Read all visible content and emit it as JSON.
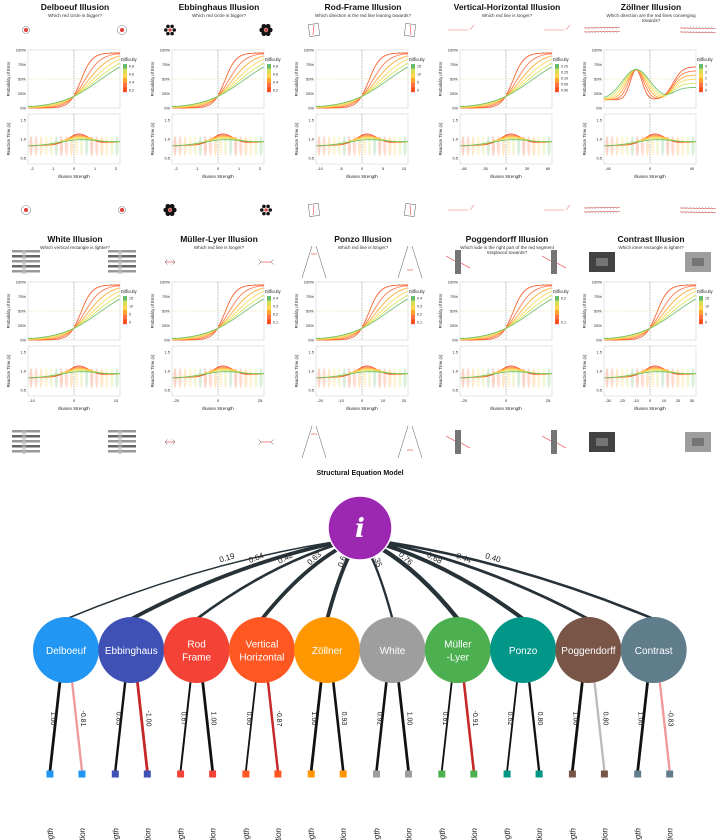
{
  "panels": [
    {
      "title": "Delboeuf Illusion",
      "question": "Which red circle is bigger?",
      "xticks": [
        "-2",
        "-1",
        "0",
        "1",
        "2"
      ],
      "legend_ticks": [
        "0.8",
        "0.6",
        "0.4",
        "0.2"
      ],
      "stim": "circles"
    },
    {
      "title": "Ebbinghaus Illusion",
      "question": "Which red circle is bigger?",
      "xticks": [
        "-2",
        "-1",
        "0",
        "1",
        "2"
      ],
      "legend_ticks": [
        "0.8",
        "0.6",
        "0.4",
        "0.2"
      ],
      "stim": "flowers"
    },
    {
      "title": "Rod-Frame Illusion",
      "question": "Which direction is the red line leaning towards?",
      "xticks": [
        "-10",
        "-5",
        "0",
        "5",
        "10"
      ],
      "legend_ticks": [
        "15",
        "10",
        "5",
        "0"
      ],
      "stim": "frames"
    },
    {
      "title": "Vertical-Horizontal Illusion",
      "question": "Which red line is longer?",
      "xticks": [
        "-60",
        "-30",
        "0",
        "30",
        "60"
      ],
      "legend_ticks": [
        "0.20",
        "0.15",
        "0.10",
        "0.05",
        "0.00"
      ],
      "stim": "vh"
    },
    {
      "title": "Zöllner Illusion",
      "question": "Which direction are the red lines converging towards?",
      "xticks": [
        "-40",
        "0",
        "40"
      ],
      "legend_ticks": [
        "4",
        "3",
        "2",
        "1",
        "0"
      ],
      "stim": "zollner"
    },
    {
      "title": "White Illusion",
      "question": "Which vertical rectangle is lighter?",
      "xticks": [
        "-10",
        "0",
        "10"
      ],
      "legend_ticks": [
        "15",
        "10",
        "5",
        "0"
      ],
      "stim": "white"
    },
    {
      "title": "Müller-Lyer Illusion",
      "question": "Which red line is longer?",
      "xticks": [
        "-25",
        "0",
        "25"
      ],
      "legend_ticks": [
        "0.4",
        "0.3",
        "0.2",
        "0.1"
      ],
      "stim": "muller"
    },
    {
      "title": "Ponzo Illusion",
      "question": "Which red line is longer?",
      "xticks": [
        "-20",
        "-10",
        "0",
        "10",
        "20"
      ],
      "legend_ticks": [
        "0.4",
        "0.3",
        "0.2",
        "0.1"
      ],
      "stim": "ponzo"
    },
    {
      "title": "Poggendorff Illusion",
      "question": "Which side is the right part of the red segment misplaced towards?",
      "xticks": [
        "-25",
        "0",
        "25"
      ],
      "legend_ticks": [
        "0.2",
        "0.1"
      ],
      "stim": "poggendorff"
    },
    {
      "title": "Contrast Illusion",
      "question": "Which inner rectangle is lighter?",
      "xticks": [
        "-30",
        "-20",
        "-10",
        "0",
        "10",
        "20",
        "30"
      ],
      "legend_ticks": [
        "15",
        "10",
        "5",
        "0"
      ],
      "stim": "contrast"
    }
  ],
  "labels": {
    "error_y": "Probability of Error",
    "rt_y": "Reaction Time (s)",
    "x": "Illusion Strength",
    "legend": "Difficulty",
    "pct_ticks": [
      "100%",
      "75%",
      "50%",
      "25%",
      "0%"
    ],
    "rt_ticks": [
      "1.5",
      "1.0",
      "0.5"
    ]
  },
  "colors": {
    "difficulty_scale": [
      "#f4511e",
      "#ff7043",
      "#ffa726",
      "#ffd54f",
      "#d4e157",
      "#66bb6a"
    ]
  },
  "chart_data": {
    "type": "diagram",
    "title": "Structural Equation Model",
    "general_factor": "i",
    "factors": [
      {
        "name": "Delboeuf",
        "color": "#2196f3",
        "loading": "0.19",
        "strength": "1.00",
        "interaction": "-0.81",
        "interaction_color": "#ef9a9a"
      },
      {
        "name": "Ebbinghaus",
        "color": "#3f51b5",
        "loading": "0.64",
        "strength": "0.85",
        "interaction": "-1.00",
        "interaction_color": "#c62828"
      },
      {
        "name": "Rod Frame",
        "color": "#f44336",
        "loading": "0.42",
        "strength": "0.67",
        "interaction": "1.00",
        "interaction_color": "#111111"
      },
      {
        "name": "Vertical Horizontal",
        "color": "#ff5722",
        "loading": "0.63",
        "strength": "0.60",
        "interaction": "-0.87",
        "interaction_color": "#c62828"
      },
      {
        "name": "Zöllner",
        "color": "#ff9800",
        "loading": "0.63",
        "strength": "1.00",
        "interaction": "0.93",
        "interaction_color": "#111111"
      },
      {
        "name": "White",
        "color": "#9e9e9e",
        "loading": "0.35",
        "strength": "0.92",
        "interaction": "1.00",
        "interaction_color": "#111111"
      },
      {
        "name": "Müller -Lyer",
        "color": "#4caf50",
        "loading": "0.76",
        "strength": "0.61",
        "interaction": "-0.91",
        "interaction_color": "#c62828"
      },
      {
        "name": "Ponzo",
        "color": "#009688",
        "loading": "0.68",
        "strength": "0.62",
        "interaction": "0.80",
        "interaction_color": "#111111"
      },
      {
        "name": "Poggendorff",
        "color": "#795548",
        "loading": "0.44",
        "strength": "1.00",
        "interaction": "0.80",
        "interaction_color": "#bbbbbb"
      },
      {
        "name": "Contrast",
        "color": "#607d8b",
        "loading": "0.40",
        "strength": "1.00",
        "interaction": "-0.83",
        "interaction_color": "#ef9a9a"
      }
    ],
    "indicator_labels": [
      "Strength",
      "Interaction"
    ]
  }
}
